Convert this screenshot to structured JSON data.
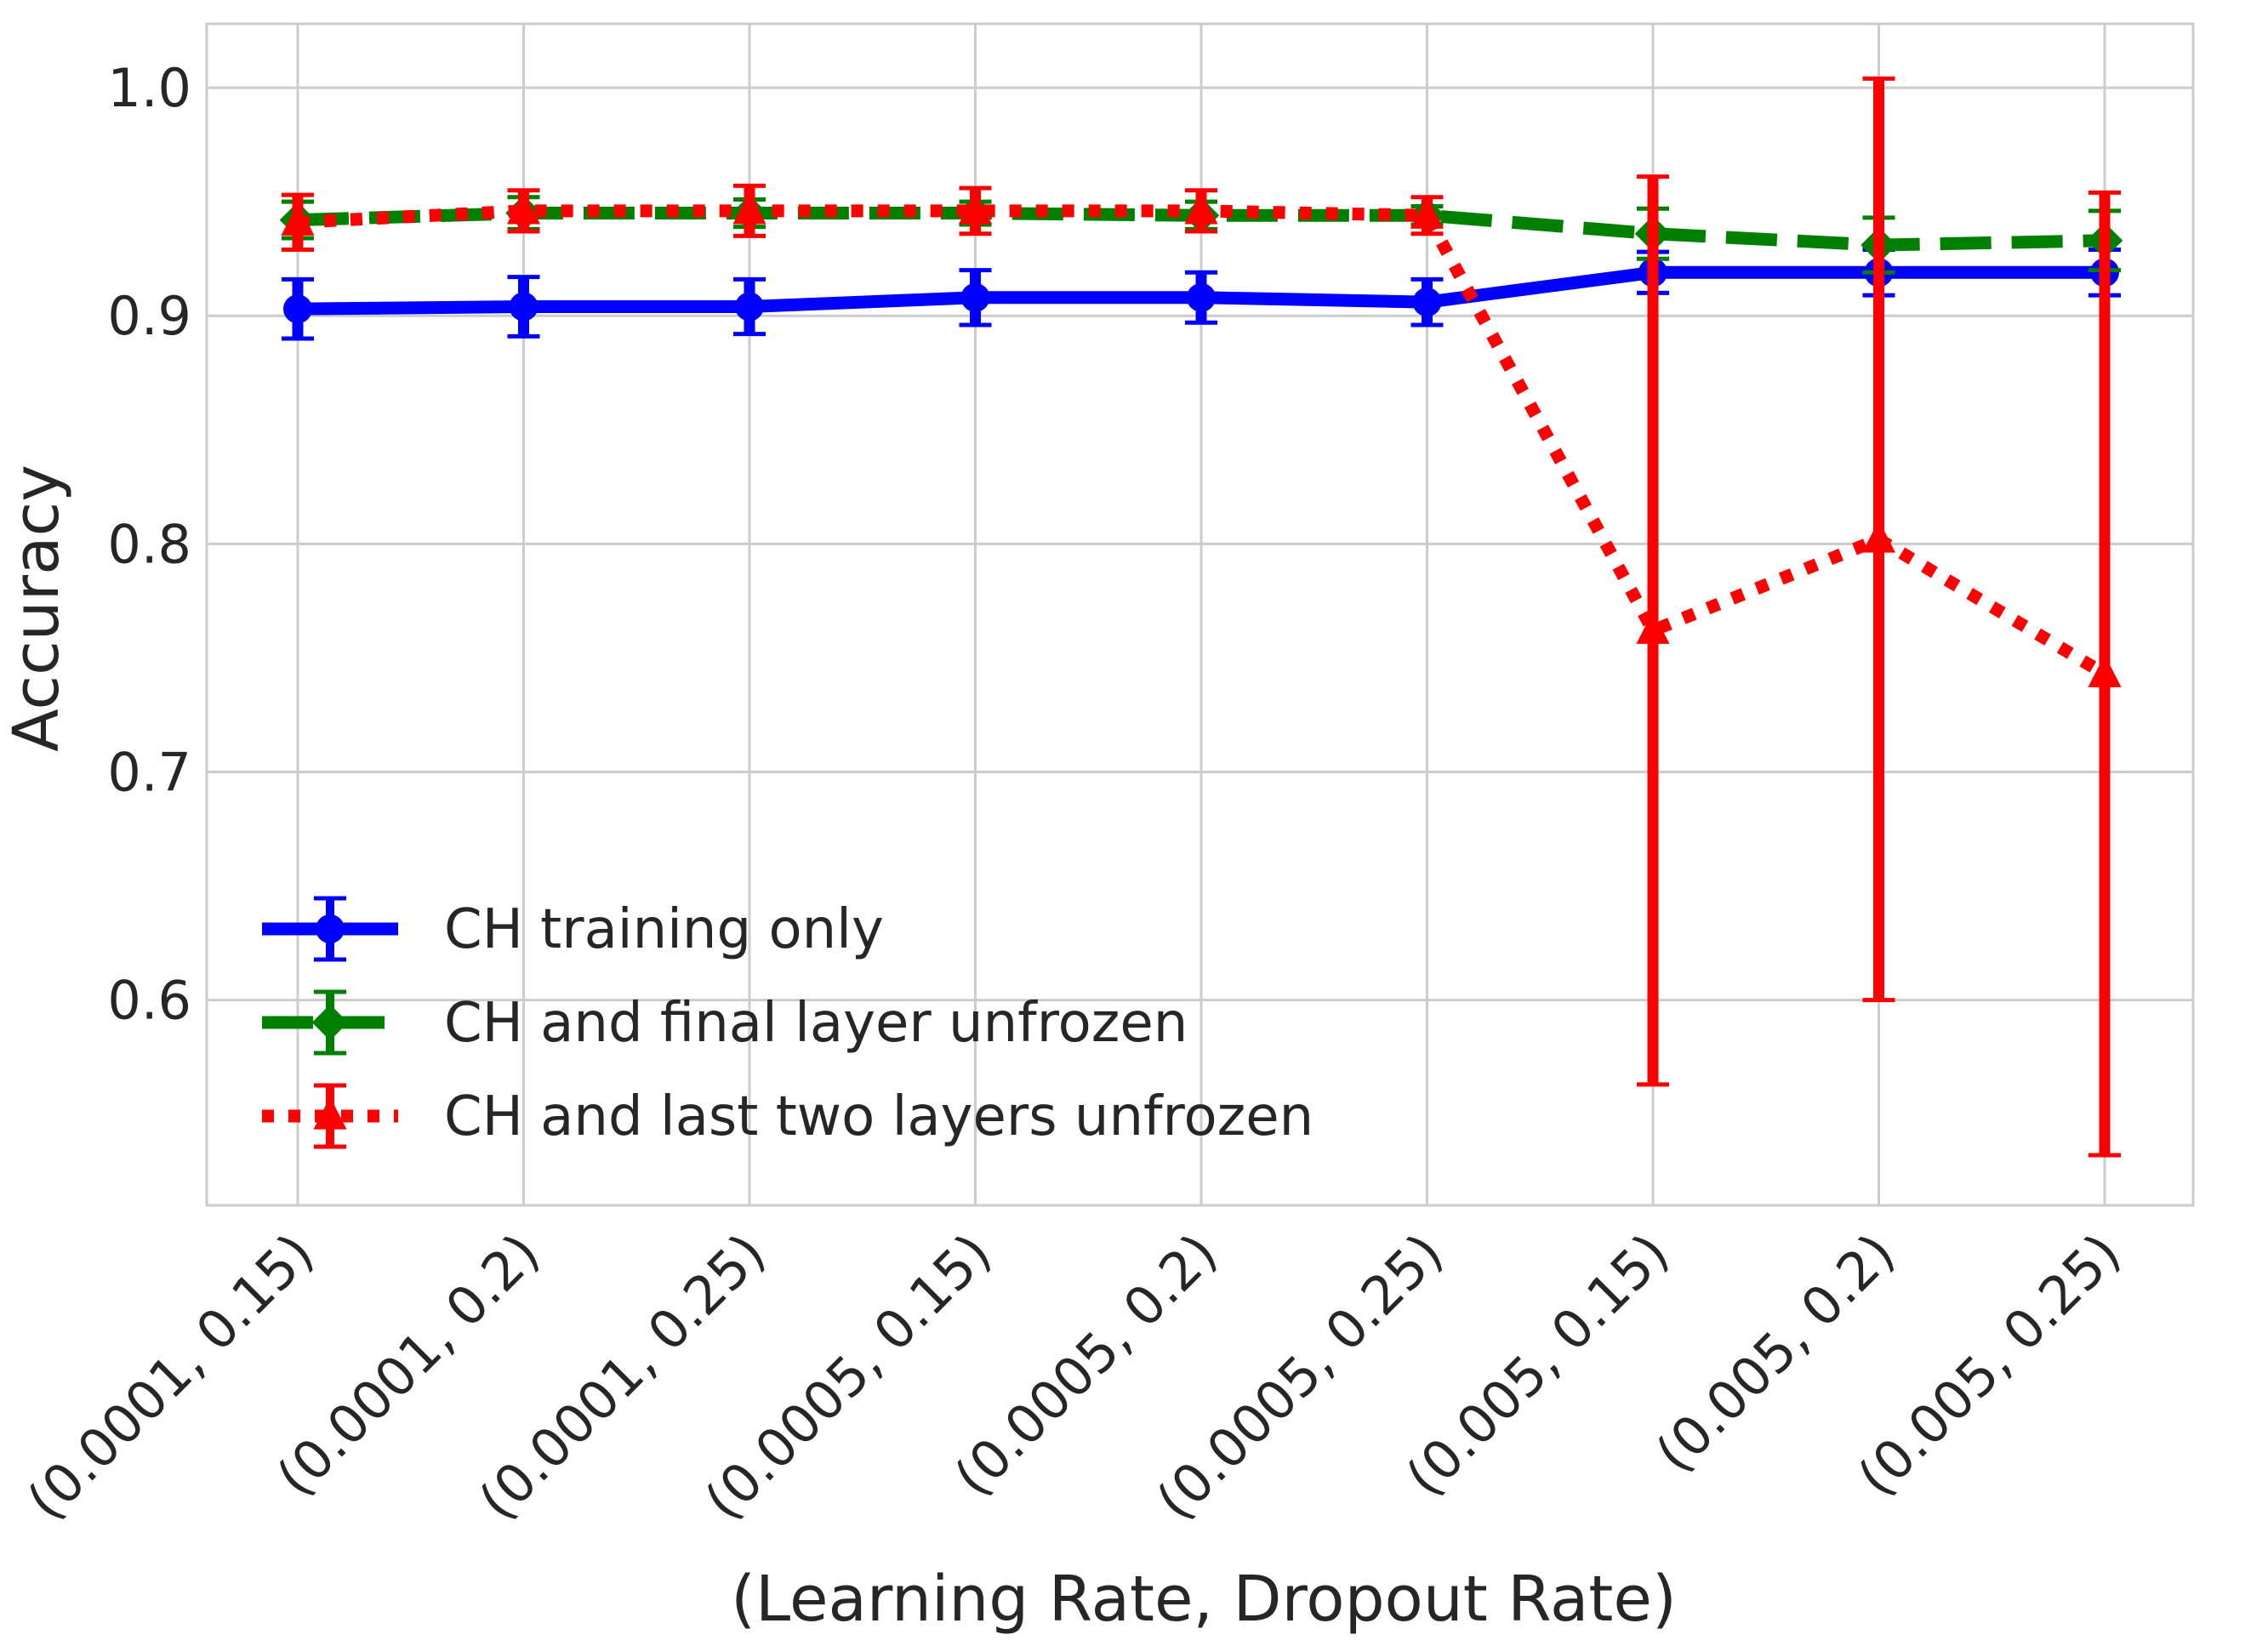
{
  "chart_data": {
    "type": "line",
    "title": "",
    "xlabel": "(Learning Rate, Dropout Rate)",
    "ylabel": "Accuracy",
    "categories": [
      "(0.0001, 0.15)",
      "(0.0001, 0.2)",
      "(0.0001, 0.25)",
      "(0.0005, 0.15)",
      "(0.0005, 0.2)",
      "(0.0005, 0.25)",
      "(0.005, 0.15)",
      "(0.005, 0.2)",
      "(0.005, 0.25)"
    ],
    "ylim": [
      0.51,
      1.028
    ],
    "yticks": [
      0.6,
      0.7,
      0.8,
      0.9,
      1.0
    ],
    "ytick_labels": [
      "0.6",
      "0.7",
      "0.8",
      "0.9",
      "1.0"
    ],
    "grid": true,
    "legend_position": "lower-left",
    "series": [
      {
        "name": "CH training only",
        "color": "#0000ff",
        "linestyle": "solid",
        "marker": "circle",
        "values": [
          0.903,
          0.904,
          0.904,
          0.908,
          0.908,
          0.906,
          0.919,
          0.919,
          0.919
        ],
        "errors": [
          0.013,
          0.013,
          0.012,
          0.012,
          0.011,
          0.01,
          0.009,
          0.01,
          0.01
        ]
      },
      {
        "name": "CH and final layer unfrozen",
        "color": "#008000",
        "linestyle": "dashed",
        "marker": "diamond",
        "values": [
          0.942,
          0.945,
          0.945,
          0.945,
          0.944,
          0.944,
          0.936,
          0.931,
          0.933
        ],
        "errors": [
          0.008,
          0.007,
          0.006,
          0.005,
          0.006,
          0.004,
          0.011,
          0.012,
          0.013
        ]
      },
      {
        "name": "CH and last two layers unfrozen",
        "color": "#ff0000",
        "linestyle": "dotted",
        "marker": "triangle",
        "values": [
          0.941,
          0.946,
          0.946,
          0.946,
          0.946,
          0.944,
          0.762,
          0.802,
          0.743
        ],
        "errors": [
          0.012,
          0.009,
          0.011,
          0.01,
          0.009,
          0.008,
          0.199,
          0.202,
          0.211
        ]
      }
    ]
  }
}
